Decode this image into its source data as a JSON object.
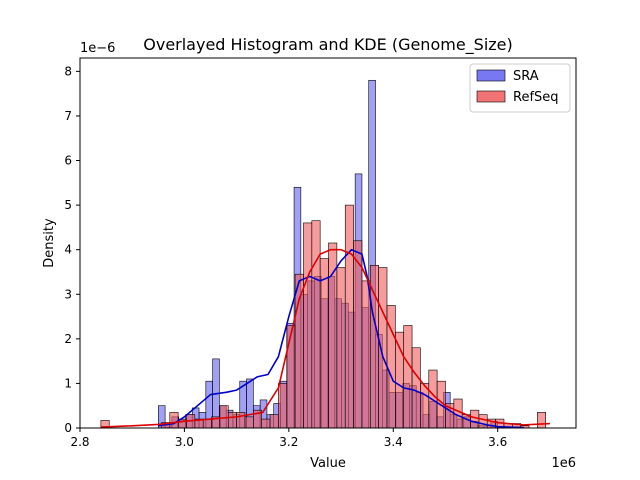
{
  "chart_data": {
    "type": "histogram",
    "title": "Overlayed Histogram and KDE (Genome_Size)",
    "xlabel": "Value",
    "ylabel": "Density",
    "x_offset_label": "1e6",
    "y_offset_label": "1e−6",
    "xlim": [
      2.8,
      3.75
    ],
    "ylim": [
      0,
      8.3
    ],
    "x_scale": 1000000,
    "y_scale": 1e-06,
    "x_ticks": [
      2.8,
      3.0,
      3.2,
      3.4,
      3.6
    ],
    "x_tick_labels": [
      "2.8",
      "3.0",
      "3.2",
      "3.4",
      "3.6"
    ],
    "y_ticks": [
      0,
      1,
      2,
      3,
      4,
      5,
      6,
      7,
      8
    ],
    "y_tick_labels": [
      "0",
      "1",
      "2",
      "3",
      "4",
      "5",
      "6",
      "7",
      "8"
    ],
    "legend": {
      "position": "upper right"
    },
    "series": [
      {
        "name": "SRA",
        "color": "#0000ff",
        "fill": "#6060f0",
        "kde_color": "#0000cc",
        "bins": [
          [
            2.95,
            2.963,
            0.5
          ],
          [
            2.963,
            2.976,
            0.12
          ],
          [
            2.976,
            2.989,
            0.25
          ],
          [
            2.989,
            3.002,
            0.18
          ],
          [
            3.002,
            3.015,
            0.3
          ],
          [
            3.015,
            3.028,
            0.45
          ],
          [
            3.028,
            3.041,
            0.35
          ],
          [
            3.041,
            3.054,
            1.05
          ],
          [
            3.054,
            3.067,
            1.55
          ],
          [
            3.067,
            3.08,
            0.5
          ],
          [
            3.08,
            3.093,
            0.4
          ],
          [
            3.093,
            3.106,
            0.3
          ],
          [
            3.106,
            3.119,
            1.05
          ],
          [
            3.119,
            3.132,
            1.1
          ],
          [
            3.132,
            3.145,
            0.5
          ],
          [
            3.145,
            3.158,
            0.63
          ],
          [
            3.158,
            3.171,
            0.3
          ],
          [
            3.171,
            3.184,
            0.55
          ],
          [
            3.184,
            3.197,
            1.05
          ],
          [
            3.197,
            3.21,
            2.35
          ],
          [
            3.21,
            3.223,
            5.4
          ],
          [
            3.223,
            3.236,
            3.0
          ],
          [
            3.236,
            3.249,
            3.3
          ],
          [
            3.249,
            3.262,
            3.4
          ],
          [
            3.262,
            3.275,
            2.9
          ],
          [
            3.275,
            3.288,
            3.4
          ],
          [
            3.288,
            3.301,
            2.9
          ],
          [
            3.301,
            3.314,
            2.8
          ],
          [
            3.314,
            3.327,
            2.6
          ],
          [
            3.327,
            3.34,
            5.7
          ],
          [
            3.34,
            3.353,
            2.7
          ],
          [
            3.353,
            3.366,
            7.8
          ],
          [
            3.366,
            3.379,
            2.1
          ],
          [
            3.379,
            3.392,
            1.3
          ],
          [
            3.392,
            3.405,
            0.8
          ],
          [
            3.405,
            3.418,
            0.8
          ],
          [
            3.418,
            3.431,
            1.0
          ],
          [
            3.431,
            3.444,
            0.95
          ],
          [
            3.444,
            3.457,
            0.8
          ],
          [
            3.457,
            3.47,
            0.3
          ],
          [
            3.47,
            3.483,
            0.6
          ],
          [
            3.483,
            3.496,
            0.25
          ],
          [
            3.496,
            3.509,
            0.8
          ],
          [
            3.509,
            3.522,
            0.3
          ],
          [
            3.522,
            3.535,
            0.2
          ],
          [
            3.535,
            3.548,
            0.25
          ],
          [
            3.548,
            3.561,
            0.15
          ],
          [
            3.561,
            3.574,
            0.05
          ],
          [
            3.574,
            3.587,
            0.05
          ],
          [
            3.587,
            3.6,
            0.15
          ]
        ],
        "kde_x": [
          2.95,
          2.98,
          3.0,
          3.02,
          3.05,
          3.08,
          3.1,
          3.12,
          3.14,
          3.16,
          3.18,
          3.2,
          3.22,
          3.24,
          3.26,
          3.28,
          3.3,
          3.32,
          3.34,
          3.35,
          3.36,
          3.38,
          3.4,
          3.42,
          3.44,
          3.46,
          3.48,
          3.5,
          3.52,
          3.55,
          3.58,
          3.6,
          3.65
        ],
        "kde_y": [
          0.05,
          0.1,
          0.25,
          0.45,
          0.75,
          0.8,
          0.85,
          1.0,
          1.15,
          1.2,
          1.6,
          2.5,
          3.3,
          3.4,
          3.3,
          3.4,
          3.75,
          4.0,
          3.9,
          3.4,
          2.6,
          1.6,
          1.05,
          0.9,
          0.85,
          0.75,
          0.6,
          0.45,
          0.3,
          0.15,
          0.07,
          0.03,
          0.01
        ]
      },
      {
        "name": "RefSeq",
        "color": "#cc0000",
        "fill": "#f05a5a",
        "kde_color": "#dd0000",
        "bins": [
          [
            2.84,
            2.856,
            0.17
          ],
          [
            2.956,
            2.972,
            0.12
          ],
          [
            2.972,
            2.988,
            0.35
          ],
          [
            2.988,
            3.004,
            0.2
          ],
          [
            3.004,
            3.02,
            0.3
          ],
          [
            3.02,
            3.036,
            0.2
          ],
          [
            3.036,
            3.052,
            0.2
          ],
          [
            3.052,
            3.068,
            0.25
          ],
          [
            3.068,
            3.084,
            0.5
          ],
          [
            3.084,
            3.1,
            0.35
          ],
          [
            3.1,
            3.116,
            0.35
          ],
          [
            3.116,
            3.132,
            0.25
          ],
          [
            3.132,
            3.148,
            0.4
          ],
          [
            3.148,
            3.164,
            0.2
          ],
          [
            3.164,
            3.18,
            0.3
          ],
          [
            3.18,
            3.196,
            1.0
          ],
          [
            3.196,
            3.212,
            2.3
          ],
          [
            3.212,
            3.228,
            3.45
          ],
          [
            3.228,
            3.244,
            4.6
          ],
          [
            3.244,
            3.26,
            4.65
          ],
          [
            3.26,
            3.276,
            3.8
          ],
          [
            3.276,
            3.292,
            4.15
          ],
          [
            3.292,
            3.308,
            3.6
          ],
          [
            3.308,
            3.324,
            5.0
          ],
          [
            3.324,
            3.34,
            4.2
          ],
          [
            3.34,
            3.356,
            3.3
          ],
          [
            3.356,
            3.372,
            3.65
          ],
          [
            3.372,
            3.388,
            3.6
          ],
          [
            3.388,
            3.404,
            2.75
          ],
          [
            3.404,
            3.42,
            2.15
          ],
          [
            3.42,
            3.436,
            2.3
          ],
          [
            3.436,
            3.452,
            1.8
          ],
          [
            3.452,
            3.468,
            1.0
          ],
          [
            3.468,
            3.484,
            1.3
          ],
          [
            3.484,
            3.5,
            1.05
          ],
          [
            3.5,
            3.516,
            0.55
          ],
          [
            3.516,
            3.532,
            0.65
          ],
          [
            3.532,
            3.548,
            0.3
          ],
          [
            3.548,
            3.564,
            0.4
          ],
          [
            3.564,
            3.58,
            0.3
          ],
          [
            3.58,
            3.596,
            0.2
          ],
          [
            3.596,
            3.612,
            0.2
          ],
          [
            3.612,
            3.628,
            0.1
          ],
          [
            3.628,
            3.644,
            0.1
          ],
          [
            3.644,
            3.66,
            0.05
          ],
          [
            3.676,
            3.692,
            0.35
          ]
        ],
        "kde_x": [
          2.84,
          2.9,
          2.95,
          3.0,
          3.05,
          3.1,
          3.15,
          3.18,
          3.2,
          3.22,
          3.24,
          3.26,
          3.28,
          3.3,
          3.32,
          3.34,
          3.36,
          3.38,
          3.4,
          3.42,
          3.44,
          3.46,
          3.48,
          3.5,
          3.55,
          3.6,
          3.65,
          3.7
        ],
        "kde_y": [
          0.02,
          0.05,
          0.08,
          0.15,
          0.2,
          0.25,
          0.35,
          0.9,
          1.9,
          2.9,
          3.5,
          3.9,
          4.0,
          4.0,
          3.9,
          3.6,
          3.1,
          2.6,
          2.1,
          1.6,
          1.25,
          0.95,
          0.7,
          0.5,
          0.25,
          0.12,
          0.07,
          0.1
        ]
      }
    ]
  }
}
